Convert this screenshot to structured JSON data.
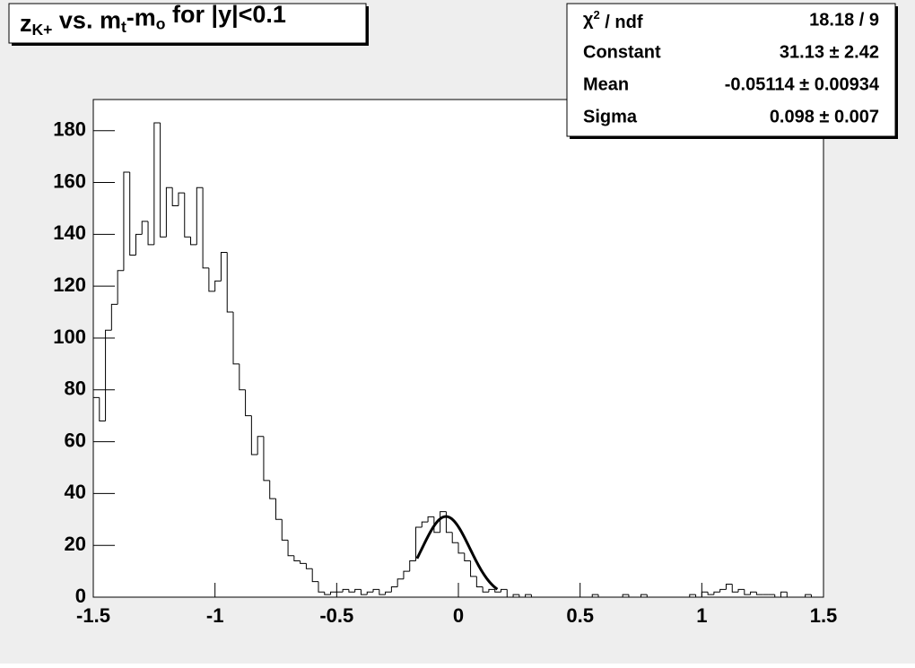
{
  "chart_data": {
    "type": "histogram",
    "title": [
      {
        "text": "z",
        "sub": false
      },
      {
        "text": "K+",
        "sub": true
      },
      {
        "text": " vs. m",
        "sub": false
      },
      {
        "text": "t",
        "sub": true
      },
      {
        "text": "-m",
        "sub": false
      },
      {
        "text": "o",
        "sub": true
      },
      {
        "text": " for |y|<0.1",
        "sub": false
      }
    ],
    "bins": [
      -1.5,
      -1.475,
      -1.45,
      -1.425,
      -1.4,
      -1.375,
      -1.35,
      -1.325,
      -1.3,
      -1.275,
      -1.25,
      -1.225,
      -1.2,
      -1.175,
      -1.15,
      -1.125,
      -1.1,
      -1.075,
      -1.05,
      -1.025,
      -1,
      -0.975,
      -0.95,
      -0.925,
      -0.9,
      -0.875,
      -0.85,
      -0.825,
      -0.8,
      -0.775,
      -0.75,
      -0.725,
      -0.7,
      -0.675,
      -0.65,
      -0.625,
      -0.6,
      -0.575,
      -0.55,
      -0.525,
      -0.5,
      -0.475,
      -0.45,
      -0.425,
      -0.4,
      -0.375,
      -0.35,
      -0.325,
      -0.3,
      -0.275,
      -0.25,
      -0.225,
      -0.2,
      -0.175,
      -0.15,
      -0.125,
      -0.1,
      -0.075,
      -0.05,
      -0.025,
      0,
      0.025,
      0.05,
      0.075,
      0.1,
      0.125,
      0.15,
      0.175,
      0.2,
      0.225,
      0.25,
      0.275,
      0.3,
      0.325,
      0.35,
      0.375,
      0.4,
      0.425,
      0.45,
      0.475,
      0.5,
      0.525,
      0.55,
      0.575,
      0.6,
      0.625,
      0.65,
      0.675,
      0.7,
      0.725,
      0.75,
      0.775,
      0.8,
      0.825,
      0.85,
      0.875,
      0.9,
      0.925,
      0.95,
      0.975,
      1,
      1.025,
      1.05,
      1.075,
      1.1,
      1.125,
      1.15,
      1.175,
      1.2,
      1.225,
      1.25,
      1.275,
      1.3,
      1.325,
      1.35,
      1.375,
      1.4,
      1.425,
      1.45,
      1.475,
      1.5
    ],
    "values": [
      77,
      68,
      103,
      113,
      126,
      164,
      132,
      140,
      145,
      136,
      183,
      139,
      158,
      151,
      156,
      139,
      136,
      158,
      127,
      118,
      122,
      133,
      110,
      90,
      80,
      70,
      55,
      62,
      45,
      38,
      30,
      22,
      16,
      14,
      13,
      11,
      6,
      2,
      1,
      2,
      2,
      3,
      2,
      3,
      1,
      2,
      3,
      1,
      2,
      4,
      7,
      10,
      14,
      27,
      29,
      31,
      25,
      33,
      25,
      21,
      17,
      14,
      8,
      4,
      2,
      3,
      2,
      3,
      0,
      1,
      0,
      1,
      0,
      0,
      0,
      0,
      0,
      0,
      0,
      0,
      0,
      0,
      1,
      0,
      0,
      0,
      0,
      1,
      0,
      0,
      1,
      0,
      0,
      0,
      0,
      0,
      0,
      0,
      1,
      0,
      2,
      1,
      2,
      3,
      5,
      2,
      3,
      1,
      2,
      1,
      1,
      1,
      0,
      2,
      0,
      0,
      0,
      1,
      0,
      0
    ],
    "color": "#000000",
    "xlim": [
      -1.5,
      1.5
    ],
    "xticks": [
      -1.5,
      -1,
      -0.5,
      0,
      0.5,
      1,
      1.5
    ],
    "ylim": [
      0,
      192
    ],
    "yticks": [
      0,
      20,
      40,
      60,
      80,
      100,
      120,
      140,
      160,
      180
    ],
    "fit": {
      "range": [
        -0.17,
        0.16
      ],
      "chi2_label": [
        {
          "text": "χ",
          "sup": false
        },
        {
          "text": "2",
          "sup": true
        },
        {
          "text": " / ndf",
          "sup": false
        }
      ],
      "chi2_value": "18.18 / 9",
      "parameters": [
        {
          "name": "Constant",
          "value": 31.13,
          "error": 2.42,
          "label": "31.13 ± 2.42"
        },
        {
          "name": "Mean",
          "value": -0.05114,
          "error": 0.00934,
          "label": "-0.05114 ± 0.00934"
        },
        {
          "name": "Sigma",
          "value": 0.098,
          "error": 0.007,
          "label": "0.098 ± 0.007"
        }
      ]
    }
  }
}
